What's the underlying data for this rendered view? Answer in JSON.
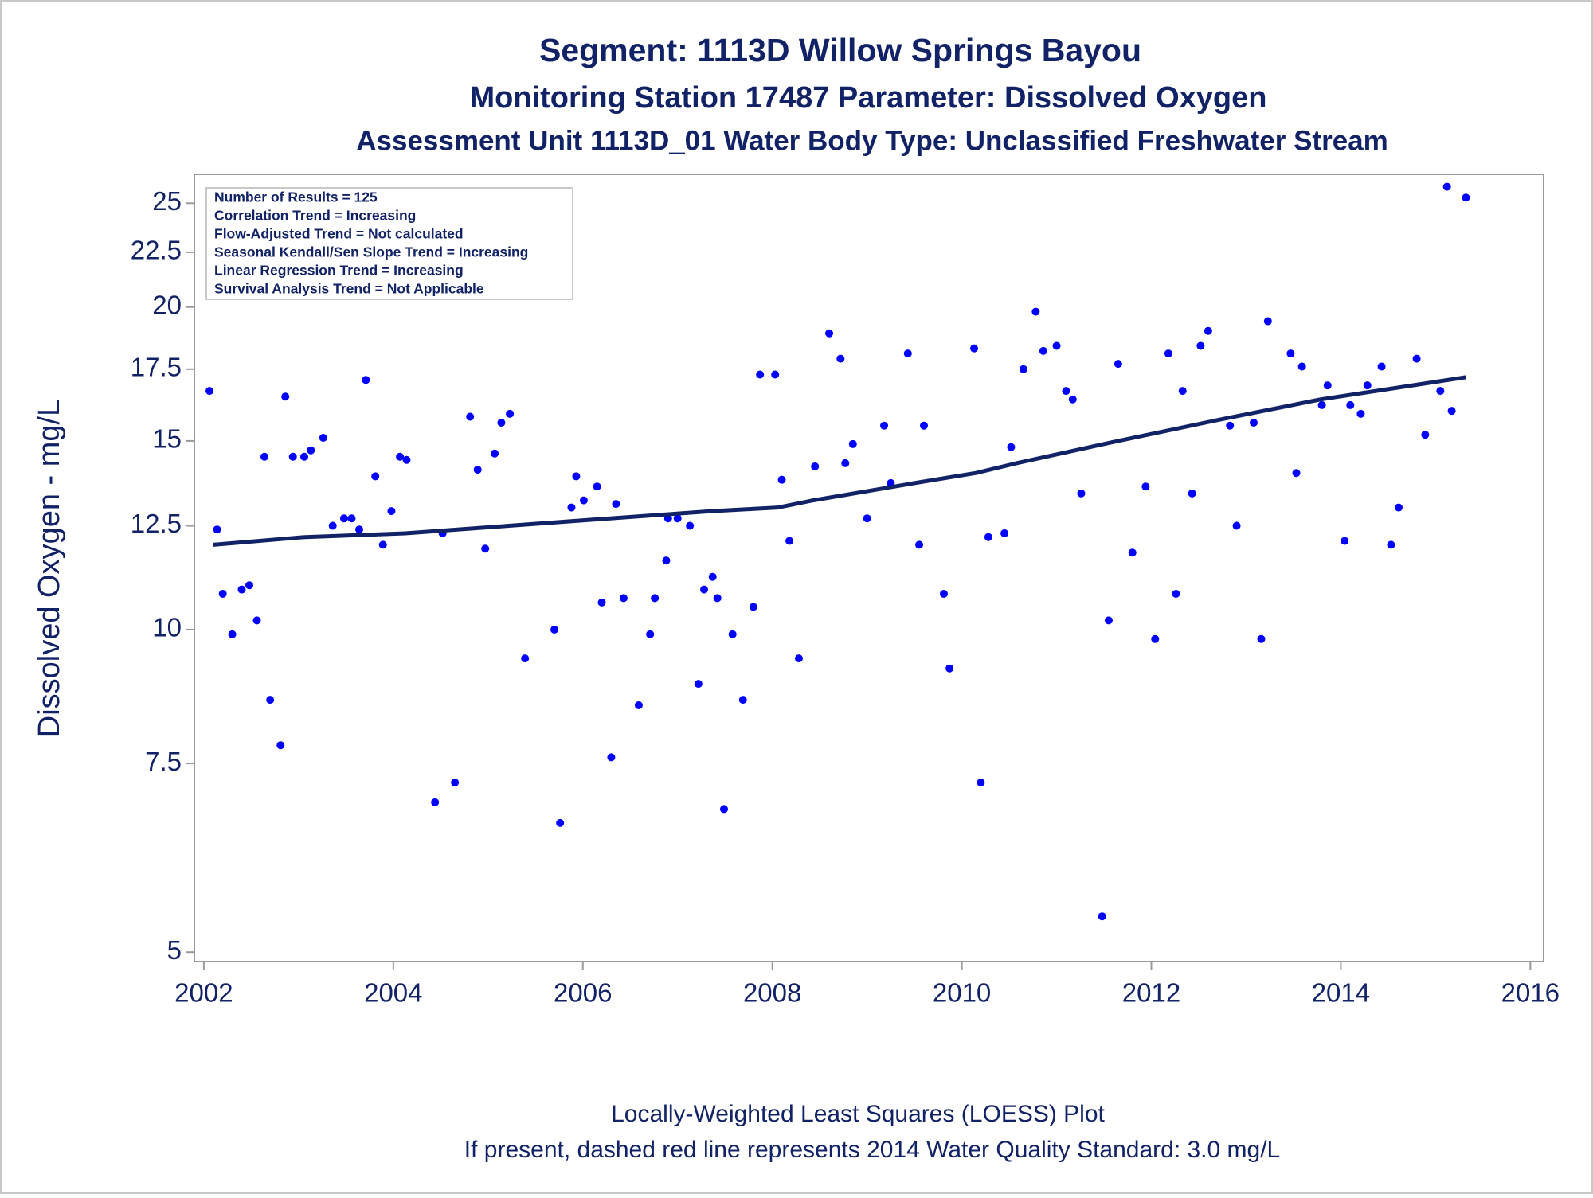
{
  "chart_data": {
    "type": "scatter",
    "title": "Segment: 1113D  Willow Springs Bayou",
    "subtitles": [
      "Monitoring Station 17487 Parameter: Dissolved Oxygen",
      "Assessment Unit 1113D_01   Water Body Type: Unclassified Freshwater Stream"
    ],
    "y_label": "Dissolved Oxygen - mg/L",
    "annotations": [
      "Number of Results = 125",
      "Correlation Trend = Increasing",
      "Flow-Adjusted Trend = Not calculated",
      "Seasonal Kendall/Sen Slope Trend = Increasing",
      "Linear Regression Trend = Increasing",
      "Survival Analysis Trend = Not Applicable"
    ],
    "footnotes": [
      "Locally-Weighted Least Squares (LOESS) Plot",
      "If present, dashed red line represents 2014 Water Quality Standard: 3.0 mg/L"
    ],
    "log_y": true,
    "xlim": [
      2001.9,
      2016.14
    ],
    "xticks": [
      2002,
      2004,
      2006,
      2008,
      2010,
      2012,
      2014,
      2016
    ],
    "ylim": [
      4.9,
      26.6
    ],
    "yticks": [
      5,
      7.5,
      10,
      12.5,
      15,
      17.5,
      20,
      22.5,
      25
    ],
    "series": [
      {
        "type": "scatter",
        "color": "#0000ff",
        "x": [
          2002.06,
          2002.14,
          2002.2,
          2002.3,
          2002.4,
          2002.48,
          2002.56,
          2002.64,
          2002.7,
          2002.81,
          2002.86,
          2002.94,
          2003.06,
          2003.13,
          2003.26,
          2003.36,
          2003.48,
          2003.56,
          2003.64,
          2003.71,
          2003.81,
          2003.89,
          2003.98,
          2004.07,
          2004.14,
          2004.44,
          2004.52,
          2004.65,
          2004.81,
          2004.89,
          2004.97,
          2005.07,
          2005.14,
          2005.23,
          2005.39,
          2005.7,
          2005.76,
          2005.88,
          2005.93,
          2006.01,
          2006.15,
          2006.2,
          2006.3,
          2006.35,
          2006.43,
          2006.59,
          2006.71,
          2006.76,
          2006.88,
          2006.9,
          2007.0,
          2007.13,
          2007.22,
          2007.28,
          2007.37,
          2007.42,
          2007.49,
          2007.58,
          2007.69,
          2007.8,
          2007.87,
          2008.03,
          2008.1,
          2008.18,
          2008.28,
          2008.45,
          2008.6,
          2008.72,
          2008.77,
          2008.85,
          2009.0,
          2009.18,
          2009.25,
          2009.43,
          2009.55,
          2009.6,
          2009.81,
          2009.87,
          2010.13,
          2010.2,
          2010.28,
          2010.45,
          2010.52,
          2010.65,
          2010.78,
          2010.86,
          2011.0,
          2011.1,
          2011.17,
          2011.26,
          2011.48,
          2011.55,
          2011.65,
          2011.8,
          2011.94,
          2012.04,
          2012.18,
          2012.26,
          2012.33,
          2012.43,
          2012.52,
          2012.6,
          2012.83,
          2012.9,
          2013.08,
          2013.16,
          2013.23,
          2013.47,
          2013.53,
          2013.59,
          2013.8,
          2013.86,
          2014.04,
          2014.1,
          2014.21,
          2014.28,
          2014.43,
          2014.53,
          2014.61,
          2014.8,
          2014.89,
          2015.05,
          2015.12,
          2015.17,
          2015.32
        ],
        "values": [
          16.7,
          12.4,
          10.8,
          9.9,
          10.9,
          11.0,
          10.2,
          14.5,
          8.6,
          7.8,
          16.5,
          14.5,
          14.5,
          14.7,
          15.1,
          12.5,
          12.7,
          12.7,
          12.4,
          17.1,
          13.9,
          12.0,
          12.9,
          14.5,
          14.4,
          6.9,
          12.3,
          7.2,
          15.8,
          14.1,
          11.9,
          14.6,
          15.6,
          15.9,
          9.4,
          10.0,
          6.6,
          13.0,
          13.9,
          13.2,
          13.6,
          10.6,
          7.6,
          13.1,
          10.7,
          8.5,
          9.9,
          10.7,
          11.6,
          12.7,
          12.7,
          12.5,
          8.9,
          10.9,
          11.2,
          10.7,
          6.8,
          9.9,
          8.6,
          10.5,
          17.3,
          17.3,
          13.8,
          12.1,
          9.4,
          14.2,
          18.9,
          17.9,
          14.3,
          14.9,
          12.7,
          15.5,
          13.7,
          18.1,
          12.0,
          15.5,
          10.8,
          9.2,
          18.3,
          7.2,
          12.2,
          12.3,
          14.8,
          17.5,
          19.8,
          18.2,
          18.4,
          16.7,
          16.4,
          13.4,
          5.4,
          10.2,
          17.7,
          11.8,
          13.6,
          9.8,
          18.1,
          10.8,
          16.7,
          13.4,
          18.4,
          19.0,
          15.5,
          12.5,
          15.6,
          9.8,
          19.4,
          18.1,
          14.0,
          17.6,
          16.2,
          16.9,
          12.1,
          16.2,
          15.9,
          16.9,
          17.6,
          12.0,
          13.0,
          17.9,
          15.2,
          16.7,
          25.9,
          16.0,
          25.3
        ]
      },
      {
        "type": "line",
        "color": "#112266",
        "x": [
          2002.1,
          2003.07,
          2004.14,
          2005.22,
          2006.29,
          2007.36,
          2008.06,
          2008.43,
          2009.5,
          2010.15,
          2010.58,
          2011.65,
          2012.72,
          2013.79,
          2015.32
        ],
        "values": [
          12.0,
          12.2,
          12.3,
          12.5,
          12.7,
          12.9,
          13.0,
          13.2,
          13.7,
          14.0,
          14.3,
          15.0,
          15.7,
          16.4,
          17.2
        ]
      }
    ]
  }
}
